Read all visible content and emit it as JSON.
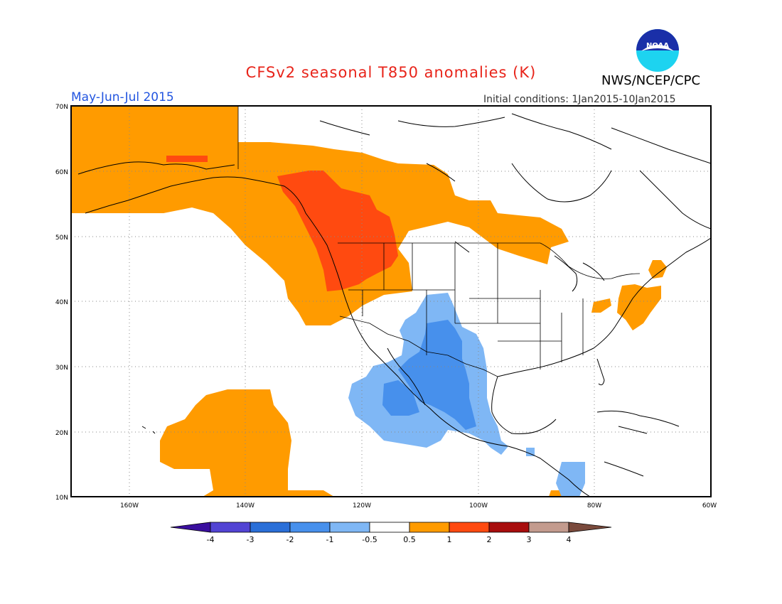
{
  "header": {
    "title": "CFSv2 seasonal T850 anomalies (K)",
    "agency": "NWS/NCEP/CPC",
    "logo_text": "NOAA",
    "period": "May-Jun-Jul 2015",
    "initial_conditions": "Initial conditions: 1Jan2015-10Jan2015"
  },
  "colors": {
    "title": "#e8241a",
    "period": "#2255e0",
    "bins": [
      "#3a0f9e",
      "#5244d4",
      "#2a6fd8",
      "#4790ec",
      "#7fb7f5",
      "#ffffff",
      "#ff9b00",
      "#ff4a10",
      "#a80d0d",
      "#c39b8e",
      "#7a4a3c"
    ]
  },
  "map": {
    "lat_ticks": [
      "70N",
      "60N",
      "50N",
      "40N",
      "30N",
      "20N",
      "10N"
    ],
    "lon_ticks": [
      "160W",
      "140W",
      "120W",
      "100W",
      "80W",
      "60W"
    ]
  },
  "colorbar": {
    "labels": [
      "-4",
      "-3",
      "-2",
      "-1",
      "-0.5",
      "0.5",
      "1",
      "2",
      "3",
      "4"
    ]
  }
}
